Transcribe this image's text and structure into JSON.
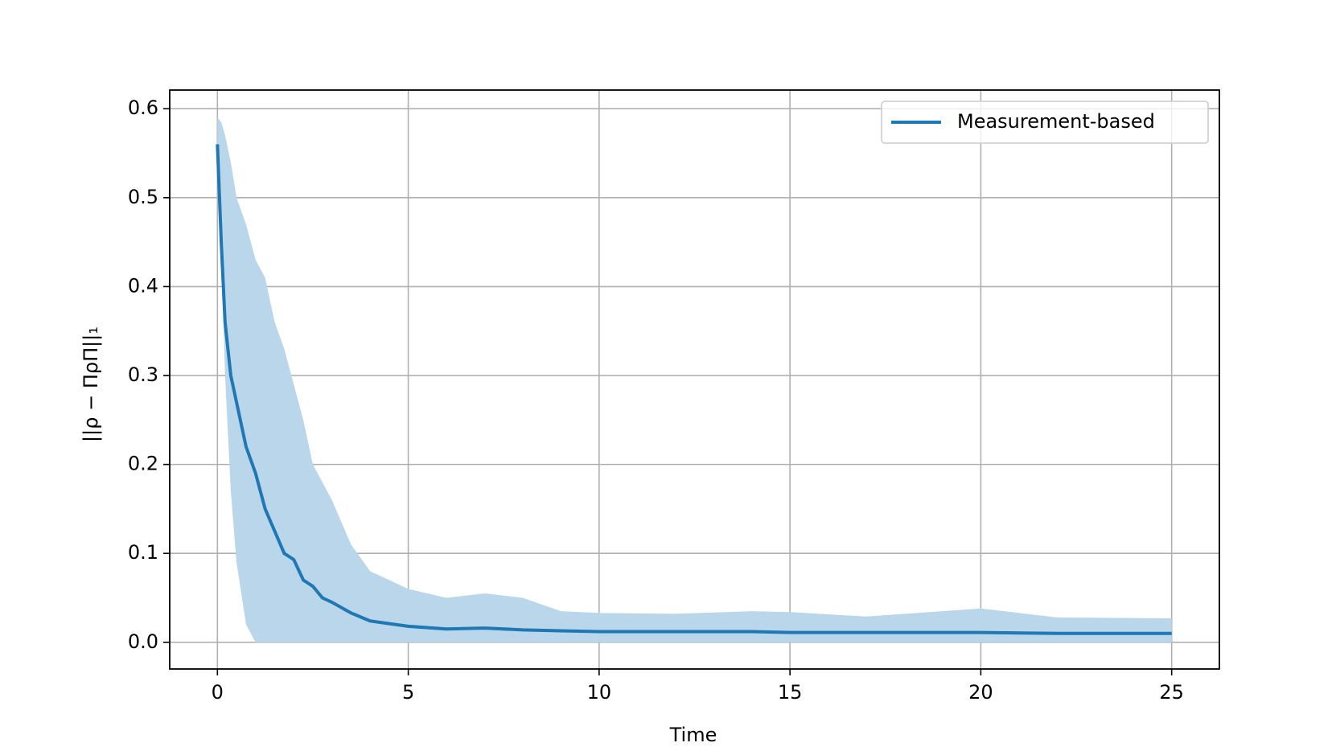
{
  "chart_data": {
    "type": "line",
    "xlabel": "Time",
    "ylabel": "||ρ − ΠρΠ||₁",
    "x": [
      0,
      0.1,
      0.2,
      0.35,
      0.5,
      0.75,
      1.0,
      1.25,
      1.5,
      1.75,
      2.0,
      2.25,
      2.5,
      2.75,
      3.0,
      3.5,
      4,
      4.5,
      5,
      6,
      7,
      8,
      9,
      10,
      12,
      14,
      15,
      17,
      20,
      22,
      25
    ],
    "series": [
      {
        "name": "Measurement-based",
        "color": "#1f77b4",
        "values": [
          0.56,
          0.45,
          0.36,
          0.3,
          0.27,
          0.22,
          0.19,
          0.15,
          0.125,
          0.1,
          0.093,
          0.07,
          0.063,
          0.05,
          0.045,
          0.033,
          0.024,
          0.021,
          0.018,
          0.015,
          0.016,
          0.014,
          0.013,
          0.012,
          0.012,
          0.012,
          0.011,
          0.011,
          0.011,
          0.01,
          0.01
        ],
        "band_upper": [
          0.59,
          0.585,
          0.57,
          0.54,
          0.5,
          0.47,
          0.43,
          0.41,
          0.36,
          0.33,
          0.29,
          0.25,
          0.2,
          0.18,
          0.16,
          0.11,
          0.08,
          0.07,
          0.06,
          0.05,
          0.055,
          0.05,
          0.035,
          0.033,
          0.032,
          0.035,
          0.034,
          0.029,
          0.038,
          0.028,
          0.027
        ],
        "band_lower": [
          0.53,
          0.44,
          0.3,
          0.17,
          0.09,
          0.02,
          0,
          0,
          0,
          0,
          0,
          0,
          0,
          0,
          0,
          0,
          0,
          0,
          0,
          0,
          0,
          0,
          0,
          0,
          0,
          0,
          0,
          0,
          0,
          0,
          0
        ],
        "band_color": "#bad6ea"
      }
    ],
    "xlim": [
      -1.25,
      26.25
    ],
    "xticks": [
      0,
      5,
      10,
      15,
      20,
      25
    ],
    "ylim": [
      -0.03,
      0.621
    ],
    "yticks": [
      {
        "value": 0,
        "label": "0.0"
      },
      0.1,
      0.2,
      0.3,
      0.4,
      0.5,
      0.6
    ],
    "grid": true,
    "legend": "upper right"
  }
}
